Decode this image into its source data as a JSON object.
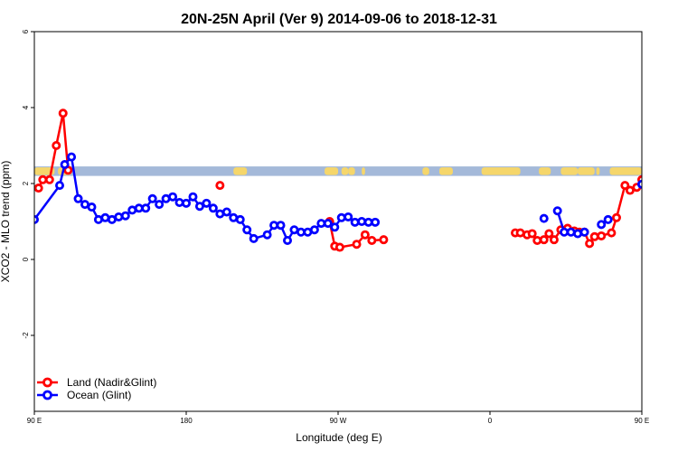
{
  "chart_data": {
    "type": "line",
    "title": "20N-25N April (Ver 9)   2014-09-06 to 2018-12-31",
    "xlabel": "Longitude (deg E)",
    "ylabel": "XCO2 - MLO trend (ppm)",
    "xlim": [
      90,
      450
    ],
    "ylim": [
      -4,
      6
    ],
    "x_ticks": [
      {
        "value": 90,
        "label": "90 E"
      },
      {
        "value": 180,
        "label": "180"
      },
      {
        "value": 270,
        "label": "90 W"
      },
      {
        "value": 360,
        "label": "0"
      },
      {
        "value": 450,
        "label": "90 E"
      },
      {
        "value": 540,
        "label": "180"
      }
    ],
    "y_ticks": [
      {
        "value": -2,
        "label": "-2"
      },
      {
        "value": 0,
        "label": "0"
      },
      {
        "value": 2,
        "label": "2"
      },
      {
        "value": 4,
        "label": "4"
      },
      {
        "value": 6,
        "label": "6"
      }
    ],
    "grid": false,
    "legend_position": "bottom-left",
    "land_band": {
      "y_low": 2.2,
      "y_high": 2.45,
      "ocean_color": "#a4b9d9",
      "land_color": "#f5d66b"
    },
    "series": [
      {
        "name": "Land (Nadir&Glint)",
        "color": "#ff0000",
        "points": [
          [
            [
              92.5,
              1.88
            ],
            [
              95,
              2.1
            ],
            [
              99,
              2.1
            ],
            [
              103,
              3.0
            ],
            [
              107,
              3.85
            ],
            [
              110,
              2.35
            ]
          ],
          [
            [
              200,
              1.95
            ]
          ],
          [
            [
              265,
              1.0
            ],
            [
              268,
              0.35
            ],
            [
              271,
              0.32
            ],
            [
              281,
              0.4
            ],
            [
              286,
              0.65
            ],
            [
              290,
              0.5
            ],
            [
              297,
              0.52
            ]
          ],
          [
            [
              375,
              0.7
            ],
            [
              378,
              0.7
            ],
            [
              382,
              0.65
            ],
            [
              385,
              0.68
            ],
            [
              388,
              0.5
            ],
            [
              392,
              0.52
            ],
            [
              395,
              0.68
            ],
            [
              398,
              0.52
            ],
            [
              402,
              0.78
            ],
            [
              406,
              0.82
            ],
            [
              410,
              0.75
            ],
            [
              413,
              0.72
            ],
            [
              416,
              0.72
            ],
            [
              419,
              0.42
            ],
            [
              422,
              0.6
            ],
            [
              426,
              0.62
            ],
            [
              432,
              0.7
            ],
            [
              435,
              1.1
            ],
            [
              440,
              1.95
            ],
            [
              443,
              1.82
            ],
            [
              447,
              1.9
            ],
            [
              450,
              2.1
            ],
            [
              454,
              2.1
            ],
            [
              457,
              3.0
            ],
            [
              461,
              3.85
            ],
            [
              465,
              2.3
            ]
          ]
        ]
      },
      {
        "name": "Ocean (Glint)",
        "color": "#0000ff",
        "points": [
          [
            [
              90,
              1.05
            ],
            [
              105,
              1.95
            ],
            [
              108,
              2.5
            ],
            [
              112,
              2.7
            ],
            [
              116,
              1.6
            ],
            [
              120,
              1.45
            ],
            [
              124,
              1.38
            ],
            [
              128,
              1.05
            ],
            [
              132,
              1.1
            ],
            [
              136,
              1.05
            ],
            [
              140,
              1.12
            ],
            [
              144,
              1.15
            ],
            [
              148,
              1.3
            ],
            [
              152,
              1.35
            ],
            [
              156,
              1.35
            ],
            [
              160,
              1.6
            ],
            [
              164,
              1.45
            ],
            [
              168,
              1.6
            ],
            [
              172,
              1.65
            ],
            [
              176,
              1.5
            ],
            [
              180,
              1.48
            ],
            [
              184,
              1.65
            ],
            [
              188,
              1.4
            ],
            [
              192,
              1.48
            ],
            [
              196,
              1.35
            ],
            [
              200,
              1.2
            ],
            [
              204,
              1.25
            ],
            [
              208,
              1.1
            ],
            [
              212,
              1.05
            ],
            [
              216,
              0.78
            ],
            [
              220,
              0.55
            ],
            [
              228,
              0.65
            ],
            [
              232,
              0.9
            ],
            [
              236,
              0.9
            ],
            [
              240,
              0.5
            ],
            [
              244,
              0.78
            ],
            [
              248,
              0.72
            ],
            [
              252,
              0.72
            ],
            [
              256,
              0.78
            ],
            [
              260,
              0.95
            ],
            [
              264,
              0.95
            ],
            [
              268,
              0.85
            ],
            [
              272,
              1.1
            ],
            [
              276,
              1.12
            ],
            [
              280,
              0.98
            ],
            [
              284,
              1.0
            ],
            [
              288,
              0.98
            ],
            [
              292,
              0.98
            ]
          ],
          [
            [
              392,
              1.08
            ]
          ],
          [
            [
              400,
              1.28
            ],
            [
              404,
              0.72
            ],
            [
              408,
              0.72
            ],
            [
              412,
              0.68
            ],
            [
              416,
              0.72
            ]
          ],
          [
            [
              426,
              0.92
            ],
            [
              430,
              1.05
            ]
          ],
          [
            [
              450,
              1.98
            ],
            [
              454,
              2.5
            ],
            [
              458,
              2.7
            ],
            [
              462,
              1.6
            ],
            [
              466,
              1.45
            ],
            [
              470,
              1.38
            ],
            [
              474,
              1.05
            ],
            [
              478,
              1.12
            ],
            [
              482,
              1.05
            ],
            [
              486,
              1.12
            ],
            [
              490,
              1.12
            ],
            [
              494,
              1.32
            ],
            [
              498,
              1.35
            ],
            [
              502,
              1.35
            ],
            [
              506,
              1.6
            ]
          ]
        ]
      }
    ]
  }
}
